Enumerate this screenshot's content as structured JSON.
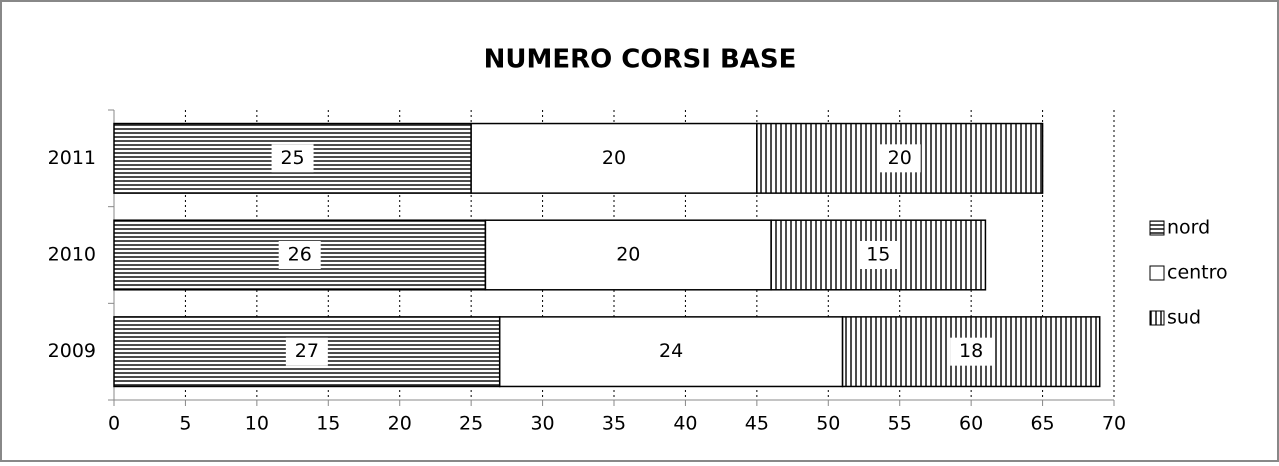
{
  "chart_data": {
    "type": "stacked-bar-horizontal",
    "title": "NUMERO CORSI BASE",
    "categories": [
      "2009",
      "2010",
      "2011"
    ],
    "series": [
      {
        "name": "nord",
        "color": "#000000",
        "pattern": "horizontal",
        "values": [
          27,
          26,
          25
        ]
      },
      {
        "name": "centro",
        "color": "#000000",
        "pattern": "none",
        "values": [
          24,
          20,
          20
        ]
      },
      {
        "name": "sud",
        "color": "#000000",
        "pattern": "vertical",
        "values": [
          18,
          15,
          20
        ]
      }
    ],
    "xlim": [
      0,
      70
    ],
    "xticks": [
      0,
      5,
      10,
      15,
      20,
      25,
      30,
      35,
      40,
      45,
      50,
      55,
      60,
      65,
      70
    ],
    "grid": true,
    "legend": "right"
  }
}
